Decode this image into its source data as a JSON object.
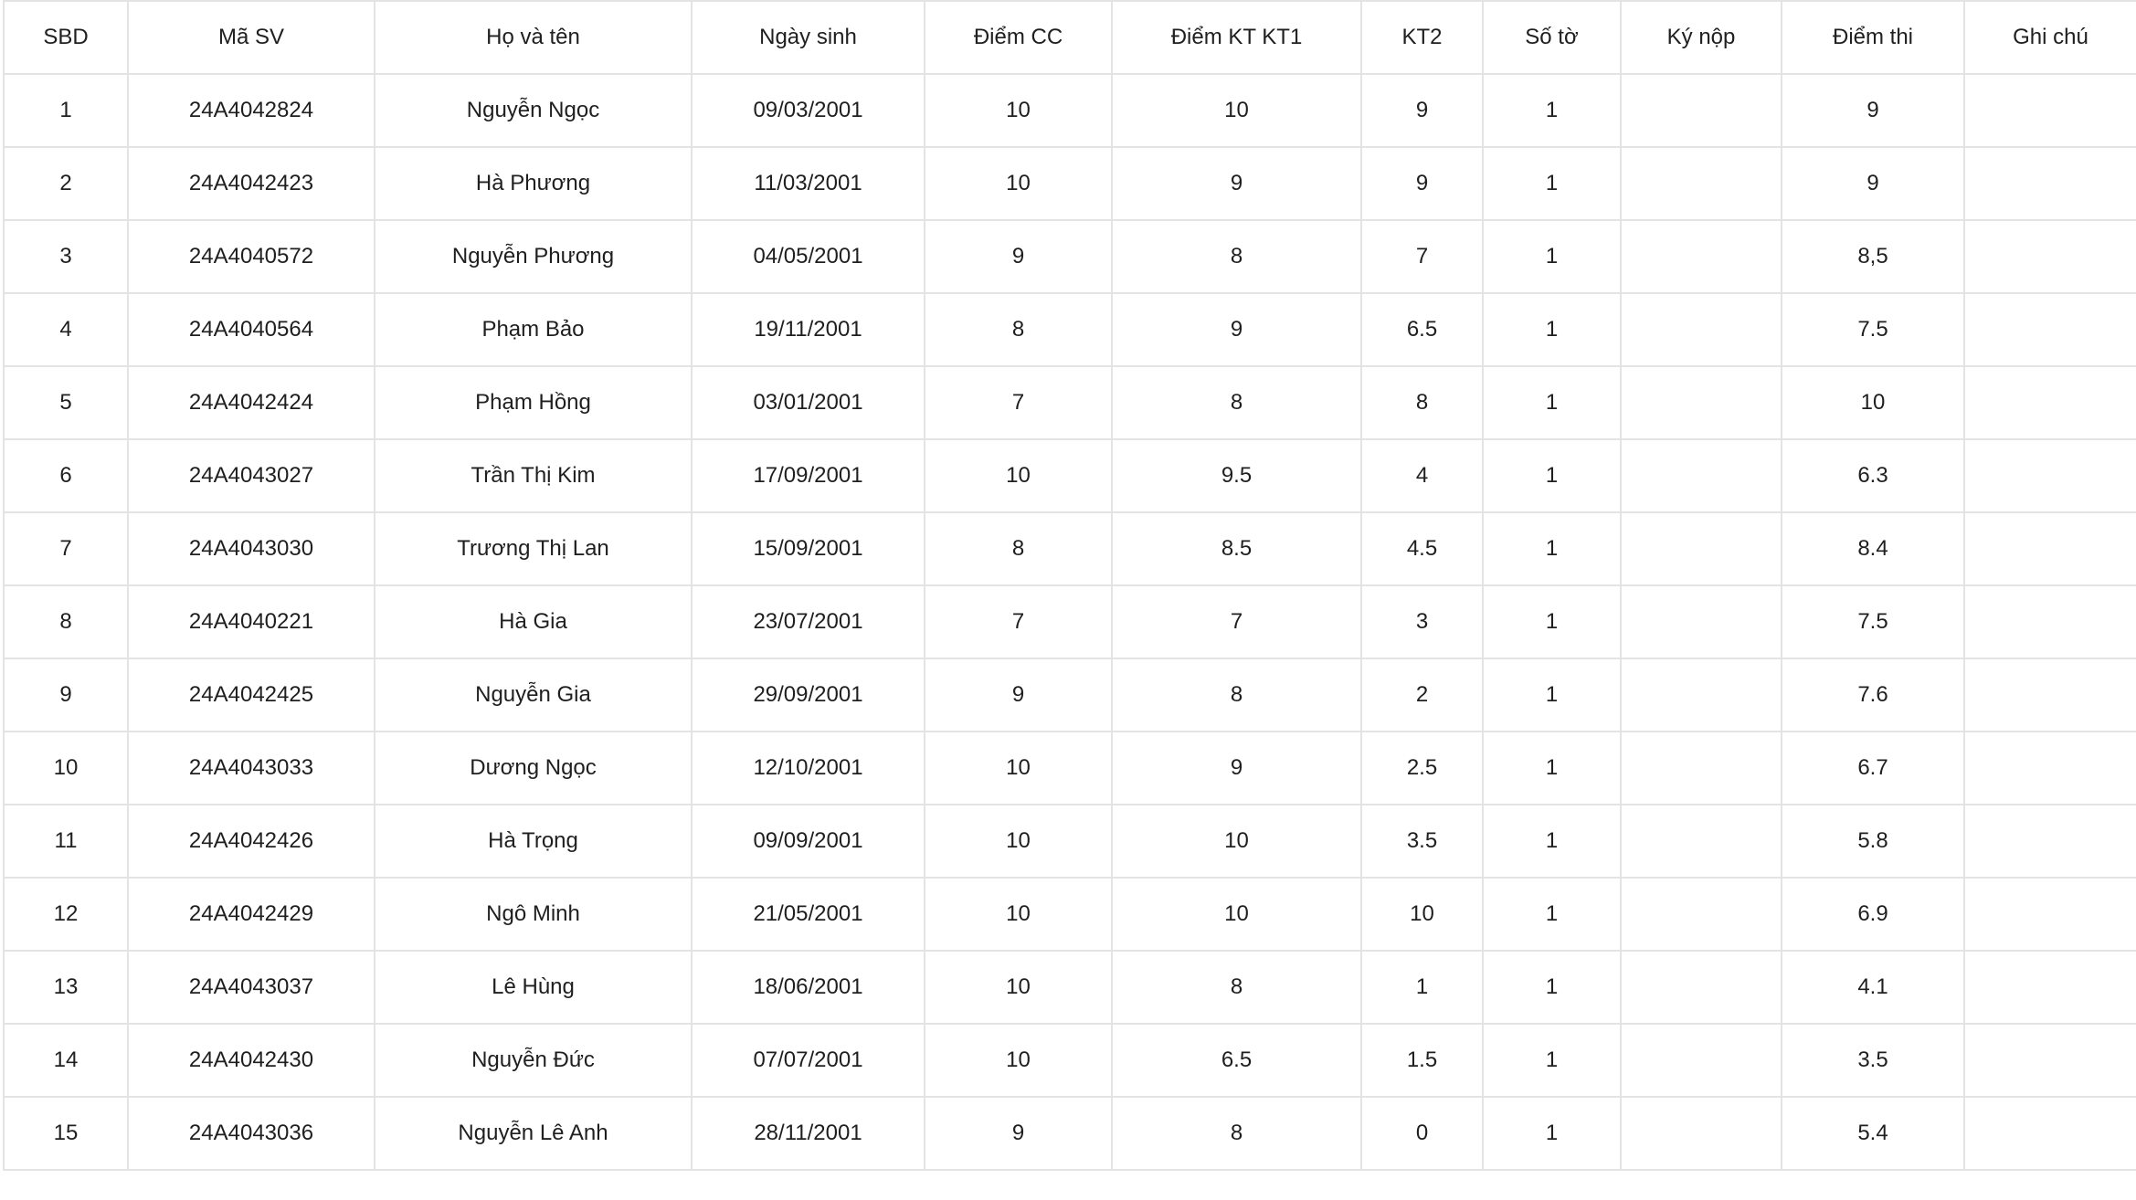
{
  "table": {
    "headers": [
      "SBD",
      "Mã SV",
      "Họ và tên",
      "Ngày sinh",
      "Điểm CC",
      "Điểm KT KT1",
      "KT2",
      "Số tờ",
      "Ký nộp",
      "Điểm thi",
      "Ghi chú"
    ],
    "rows": [
      [
        "1",
        "24A4042824",
        "Nguyễn Ngọc",
        "09/03/2001",
        "10",
        "10",
        "9",
        "1",
        "",
        "9",
        ""
      ],
      [
        "2",
        "24A4042423",
        "Hà Phương",
        "11/03/2001",
        "10",
        "9",
        "9",
        "1",
        "",
        "9",
        ""
      ],
      [
        "3",
        "24A4040572",
        "Nguyễn Phương",
        "04/05/2001",
        "9",
        "8",
        "7",
        "1",
        "",
        "8,5",
        ""
      ],
      [
        "4",
        "24A4040564",
        "Phạm Bảo",
        "19/11/2001",
        "8",
        "9",
        "6.5",
        "1",
        "",
        "7.5",
        ""
      ],
      [
        "5",
        "24A4042424",
        "Phạm Hồng",
        "03/01/2001",
        "7",
        "8",
        "8",
        "1",
        "",
        "10",
        ""
      ],
      [
        "6",
        "24A4043027",
        "Trần Thị Kim",
        "17/09/2001",
        "10",
        "9.5",
        "4",
        "1",
        "",
        "6.3",
        ""
      ],
      [
        "7",
        "24A4043030",
        "Trương Thị Lan",
        "15/09/2001",
        "8",
        "8.5",
        "4.5",
        "1",
        "",
        "8.4",
        ""
      ],
      [
        "8",
        "24A4040221",
        "Hà Gia",
        "23/07/2001",
        "7",
        "7",
        "3",
        "1",
        "",
        "7.5",
        ""
      ],
      [
        "9",
        "24A4042425",
        "Nguyễn Gia",
        "29/09/2001",
        "9",
        "8",
        "2",
        "1",
        "",
        "7.6",
        ""
      ],
      [
        "10",
        "24A4043033",
        "Dương Ngọc",
        "12/10/2001",
        "10",
        "9",
        "2.5",
        "1",
        "",
        "6.7",
        ""
      ],
      [
        "11",
        "24A4042426",
        "Hà Trọng",
        "09/09/2001",
        "10",
        "10",
        "3.5",
        "1",
        "",
        "5.8",
        ""
      ],
      [
        "12",
        "24A4042429",
        "Ngô Minh",
        "21/05/2001",
        "10",
        "10",
        "10",
        "1",
        "",
        "6.9",
        ""
      ],
      [
        "13",
        "24A4043037",
        "Lê Hùng",
        "18/06/2001",
        "10",
        "8",
        "1",
        "1",
        "",
        "4.1",
        ""
      ],
      [
        "14",
        "24A4042430",
        "Nguyễn Đức",
        "07/07/2001",
        "10",
        "6.5",
        "1.5",
        "1",
        "",
        "3.5",
        ""
      ],
      [
        "15",
        "24A4043036",
        "Nguyễn Lê Anh",
        "28/11/2001",
        "9",
        "8",
        "0",
        "1",
        "",
        "5.4",
        ""
      ]
    ]
  }
}
